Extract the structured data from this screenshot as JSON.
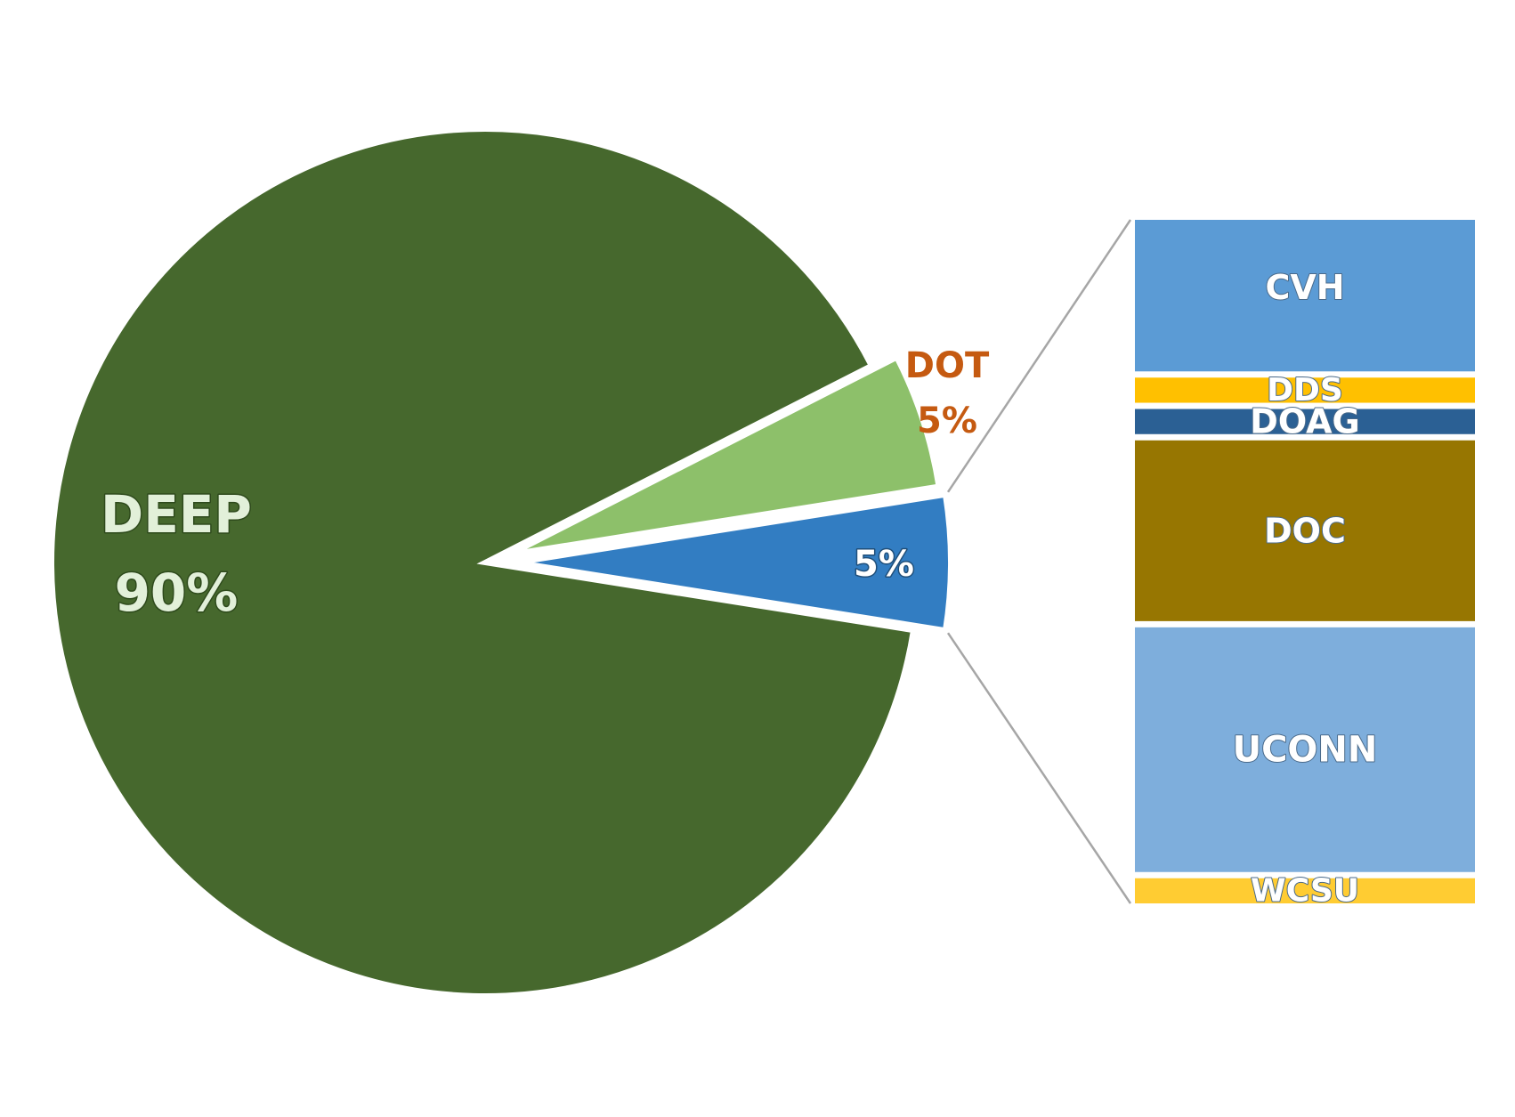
{
  "chart_data": {
    "type": "bar-of-pie",
    "pie": {
      "slices": [
        {
          "name": "DEEP",
          "value": 90,
          "label": "DEEP",
          "pct_label": "90%",
          "color": "#46682D"
        },
        {
          "name": "DOT",
          "value": 5,
          "label": "DOT",
          "pct_label": "5%",
          "color": "#8DC06A"
        },
        {
          "name": "",
          "value": 5,
          "label": "",
          "pct_label": "5%",
          "color": "#327DC2"
        }
      ]
    },
    "breakout": {
      "of_slice": 2,
      "segments": [
        {
          "name": "CVH",
          "label": "CVH",
          "share": 0.223,
          "color": "#5B9BD5"
        },
        {
          "name": "DDS",
          "label": "DDS",
          "share": 0.037,
          "color": "#FFC000"
        },
        {
          "name": "DOAG",
          "label": "DOAG",
          "share": 0.037,
          "color": "#2B6094"
        },
        {
          "name": "DOC",
          "label": "DOC",
          "share": 0.266,
          "color": "#977601"
        },
        {
          "name": "UCONN",
          "label": "UCONN",
          "share": 0.36,
          "color": "#7EAEDC"
        },
        {
          "name": "WCSU",
          "label": "WCSU",
          "share": 0.037,
          "color": "#FFCC32"
        }
      ]
    },
    "connector_color": "#A6A6A6",
    "label_colors": {
      "dot": "#C55A11",
      "white": "#FFFFFF",
      "light": "#E2F0D9"
    }
  }
}
